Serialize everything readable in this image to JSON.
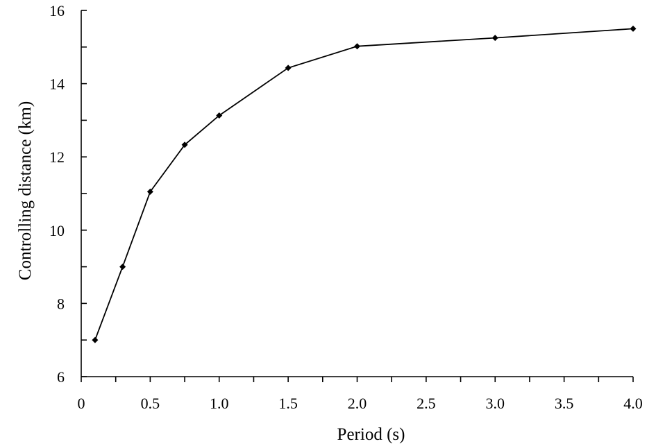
{
  "chart_data": {
    "type": "line",
    "title": "",
    "xlabel": "Period (s)",
    "ylabel": "Controlling distance (km)",
    "xlim": [
      0,
      4.0
    ],
    "ylim": [
      6,
      16
    ],
    "grid": false,
    "x_ticks": [
      0,
      0.5,
      1.0,
      1.5,
      2.0,
      2.5,
      3.0,
      3.5,
      4.0
    ],
    "x_tick_labels": [
      "0",
      "0.5",
      "1.0",
      "1.5",
      "2.0",
      "2.5",
      "3.0",
      "3.5",
      "4.0"
    ],
    "y_ticks": [
      6,
      8,
      10,
      12,
      14,
      16
    ],
    "y_tick_labels": [
      "6",
      "8",
      "10",
      "12",
      "14",
      "16"
    ],
    "y_minor_ticks": [
      7,
      9,
      11,
      13,
      15
    ],
    "x_minor_ticks": [
      0.25,
      0.75,
      1.25,
      1.75,
      2.25,
      2.75,
      3.25,
      3.75
    ],
    "series": [
      {
        "x": [
          0.1,
          0.3,
          0.5,
          0.75,
          1.0,
          1.5,
          2.0,
          3.0,
          4.0
        ],
        "y": [
          7.0,
          9.0,
          11.05,
          12.33,
          13.13,
          14.43,
          15.02,
          15.25,
          15.5
        ]
      }
    ]
  }
}
